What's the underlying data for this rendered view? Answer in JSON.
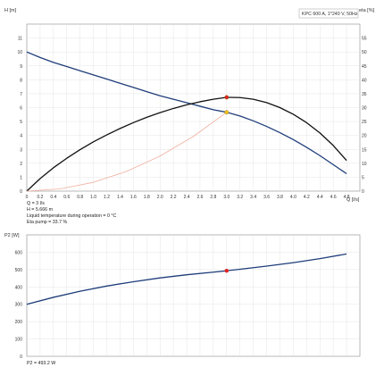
{
  "pump_label": "KPC 600 A, 1*240 V, 50Hz",
  "info_lines": [
    "Q = 3 l/s",
    "H = 5.666 m",
    "Liquid temperature during operation = 0 °C",
    "Eta pump = 33.7 %"
  ],
  "p2_value_text": "P2 = 493.2 W",
  "colors": {
    "head_curve": "#1f3d7a",
    "eta_curve": "#111111",
    "system_curve": "#f0b0a0",
    "eta_point": "#dd2222",
    "duty_point": "#f0c020",
    "p2_curve": "#1f3d7a",
    "p2_point": "#dd2222",
    "grid": "#e4e4e4",
    "axis": "#9a9a9a"
  },
  "chart_data": [
    {
      "type": "line",
      "x_label": "Q [l/s]",
      "y_label_left": "H [m]",
      "y_label_right": "eta [%]",
      "xlim": [
        0,
        5
      ],
      "ylim_left": [
        0,
        12
      ],
      "ylim_right": [
        0,
        60
      ],
      "x_ticks": [
        "0",
        "0.2",
        "0.4",
        "0.6",
        "0.8",
        "1.0",
        "1.2",
        "1.4",
        "1.6",
        "1.8",
        "2.0",
        "2.2",
        "2.4",
        "2.6",
        "2.8",
        "3.0",
        "3.2",
        "3.4",
        "3.6",
        "3.8",
        "4.0",
        "4.2",
        "4.4",
        "4.6",
        "4.8"
      ],
      "y_ticks_left": [
        "0",
        "1",
        "2",
        "3",
        "4",
        "5",
        "6",
        "7",
        "8",
        "9",
        "10",
        "11"
      ],
      "y_ticks_right": [
        "0",
        "5",
        "10",
        "15",
        "20",
        "25",
        "30",
        "35",
        "40",
        "45",
        "50",
        "55"
      ],
      "grid": true,
      "series": [
        {
          "role": "head",
          "axis": "left",
          "x": [
            0,
            0.2,
            0.4,
            0.6,
            0.8,
            1.0,
            1.2,
            1.4,
            1.6,
            1.8,
            2.0,
            2.2,
            2.4,
            2.6,
            2.8,
            3.0,
            3.2,
            3.4,
            3.6,
            3.8,
            4.0,
            4.2,
            4.4,
            4.6,
            4.8
          ],
          "values": [
            10.0,
            9.6,
            9.25,
            8.95,
            8.65,
            8.35,
            8.05,
            7.75,
            7.45,
            7.15,
            6.85,
            6.6,
            6.35,
            6.1,
            5.85,
            5.666,
            5.4,
            5.05,
            4.65,
            4.2,
            3.7,
            3.15,
            2.55,
            1.9,
            1.25
          ]
        },
        {
          "role": "efficiency",
          "axis": "right",
          "x": [
            0,
            0.2,
            0.4,
            0.6,
            0.8,
            1.0,
            1.2,
            1.4,
            1.6,
            1.8,
            2.0,
            2.2,
            2.4,
            2.6,
            2.8,
            3.0,
            3.2,
            3.4,
            3.6,
            3.8,
            4.0,
            4.2,
            4.4,
            4.6,
            4.8
          ],
          "values": [
            0,
            4.5,
            8.4,
            11.8,
            14.9,
            17.7,
            20.2,
            22.5,
            24.6,
            26.5,
            28.2,
            29.7,
            31.0,
            32.1,
            33.0,
            33.7,
            33.6,
            33.0,
            31.8,
            30.0,
            27.6,
            24.6,
            20.9,
            16.4,
            11.0
          ]
        },
        {
          "role": "system",
          "axis": "left",
          "x": [
            0,
            0.5,
            1.0,
            1.5,
            2.0,
            2.5,
            3.0
          ],
          "values": [
            0,
            0.16,
            0.63,
            1.42,
            2.52,
            3.93,
            5.666
          ]
        }
      ],
      "points": [
        {
          "role": "efficiency-duty",
          "axis": "right",
          "x": 3.0,
          "y": 33.7
        },
        {
          "role": "head-duty",
          "axis": "left",
          "x": 3.0,
          "y": 5.666
        }
      ]
    },
    {
      "type": "line",
      "y_label": "P2 [W]",
      "xlim": [
        0,
        5
      ],
      "ylim": [
        0,
        700
      ],
      "y_ticks": [
        "0",
        "100",
        "200",
        "300",
        "400",
        "500",
        "600"
      ],
      "grid": true,
      "series": [
        {
          "role": "power",
          "x": [
            0,
            0.4,
            0.8,
            1.2,
            1.6,
            2.0,
            2.4,
            2.8,
            3.0,
            3.2,
            3.6,
            4.0,
            4.4,
            4.8
          ],
          "values": [
            300,
            340,
            375,
            405,
            430,
            452,
            470,
            485,
            493.2,
            502,
            520,
            540,
            563,
            590
          ]
        }
      ],
      "points": [
        {
          "role": "p2-duty",
          "x": 3.0,
          "y": 493.2
        }
      ]
    }
  ]
}
